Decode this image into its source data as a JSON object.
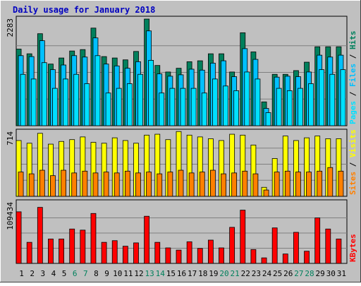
{
  "chart_data": {
    "type": "bar",
    "title": "Daily usage for January 2018",
    "categories": [
      "1",
      "2",
      "3",
      "4",
      "5",
      "6",
      "7",
      "8",
      "9",
      "10",
      "11",
      "12",
      "13",
      "14",
      "15",
      "16",
      "17",
      "18",
      "19",
      "20",
      "21",
      "22",
      "23",
      "24",
      "25",
      "26",
      "27",
      "28",
      "29",
      "30",
      "31"
    ],
    "weekend_days": [
      "6",
      "7",
      "13",
      "14",
      "20",
      "21",
      "27",
      "28"
    ],
    "panels": [
      {
        "name": "hits-files-pages",
        "ymax_label": "2283",
        "ylim": [
          0,
          2283
        ],
        "legend": [
          "Pages",
          "Files",
          "Hits"
        ],
        "series": [
          {
            "name": "Hits",
            "color": "#00805c",
            "values": [
              1640,
              1540,
              1970,
              1320,
              1450,
              1600,
              1630,
              2090,
              1480,
              1450,
              1410,
              1590,
              2283,
              1290,
              1150,
              1230,
              1370,
              1390,
              1540,
              1540,
              1150,
              1990,
              1580,
              510,
              1100,
              1100,
              1180,
              1360,
              1690,
              1690,
              1690
            ]
          },
          {
            "name": "Files",
            "color": "#00c0ff",
            "values": [
              1500,
              1480,
              1820,
              1200,
              1300,
              1500,
              1470,
              1880,
              1320,
              1280,
              1230,
              1370,
              2030,
              1110,
              1060,
              1090,
              1210,
              1190,
              1340,
              1390,
              1050,
              1650,
              1420,
              370,
              1040,
              1060,
              1050,
              1150,
              1510,
              1470,
              1510
            ]
          },
          {
            "name": "Pages",
            "color": "#00e0ff",
            "values": [
              1100,
              1000,
              1350,
              800,
              1000,
              1100,
              900,
              1500,
              700,
              800,
              900,
              1100,
              1400,
              700,
              800,
              800,
              800,
              700,
              1000,
              850,
              750,
              1150,
              1000,
              280,
              800,
              750,
              800,
              900,
              1200,
              1100,
              1200
            ]
          }
        ]
      },
      {
        "name": "visits-sites",
        "ymax_label": "714",
        "ylim": [
          0,
          714
        ],
        "legend": [
          "Sites",
          "Visits"
        ],
        "series": [
          {
            "name": "Visits",
            "color": "#ffff00",
            "values": [
              620,
              590,
              700,
              580,
              610,
              630,
              660,
              600,
              590,
              650,
              620,
              590,
              680,
              690,
              630,
              720,
              680,
              660,
              640,
              620,
              690,
              680,
              570,
              100,
              420,
              670,
              620,
              650,
              670,
              640,
              640
            ]
          },
          {
            "name": "Sites",
            "color": "#ff8000",
            "values": [
              270,
              250,
              290,
              230,
              290,
              260,
              280,
              260,
              270,
              260,
              280,
              260,
              270,
              250,
              270,
              290,
              260,
              270,
              290,
              250,
              260,
              280,
              250,
              70,
              270,
              280,
              270,
              270,
              280,
              320,
              280
            ]
          }
        ]
      },
      {
        "name": "kbytes",
        "ymax_label": "109434",
        "ylim": [
          0,
          109434
        ],
        "legend": [
          "KBytes"
        ],
        "series": [
          {
            "name": "KBytes",
            "color": "#ff0000",
            "values": [
              93000,
              38000,
              101000,
              44000,
              44000,
              62000,
              60000,
              90000,
              38000,
              41000,
              31000,
              37000,
              85000,
              38000,
              28000,
              24000,
              39000,
              27000,
              42000,
              28000,
              65000,
              96000,
              25000,
              10000,
              64000,
              17000,
              56000,
              22000,
              82000,
              62000,
              44000
            ]
          }
        ]
      }
    ]
  }
}
